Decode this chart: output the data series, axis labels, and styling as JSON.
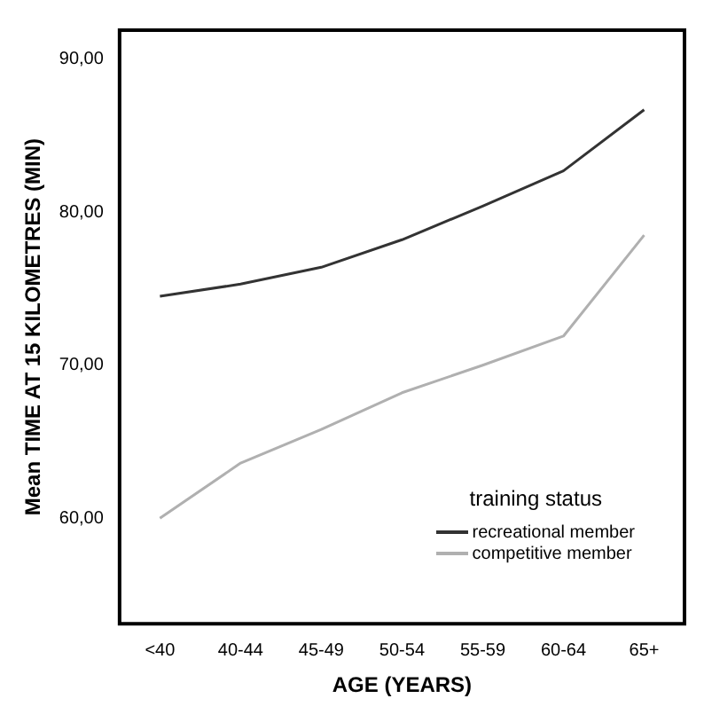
{
  "chart_data": {
    "type": "line",
    "xlabel": "AGE (YEARS)",
    "ylabel": "Mean TIME AT 15 KILOMETRES (MIN)",
    "legend_title": "training status",
    "legend": "bottom right",
    "grid": false,
    "marker": "none",
    "line_style": "solid",
    "categories": [
      "<40",
      "40-44",
      "45-49",
      "50-54",
      "55-59",
      "60-64",
      "65+"
    ],
    "ylim": [
      53.1,
      91.9
    ],
    "yticks": [
      {
        "value": 60,
        "label": "60,00"
      },
      {
        "value": 70,
        "label": "70,00"
      },
      {
        "value": 80,
        "label": "80,00"
      },
      {
        "value": 90,
        "label": "90,00"
      }
    ],
    "series": [
      {
        "name": "recreational member",
        "color": "#333333",
        "values": [
          74.5,
          75.3,
          76.4,
          78.2,
          80.4,
          82.7,
          86.7
        ]
      },
      {
        "name": "competitive member",
        "color": "#b0b0b0",
        "values": [
          60.0,
          63.6,
          65.8,
          68.2,
          70.0,
          71.9,
          78.5
        ]
      }
    ]
  }
}
